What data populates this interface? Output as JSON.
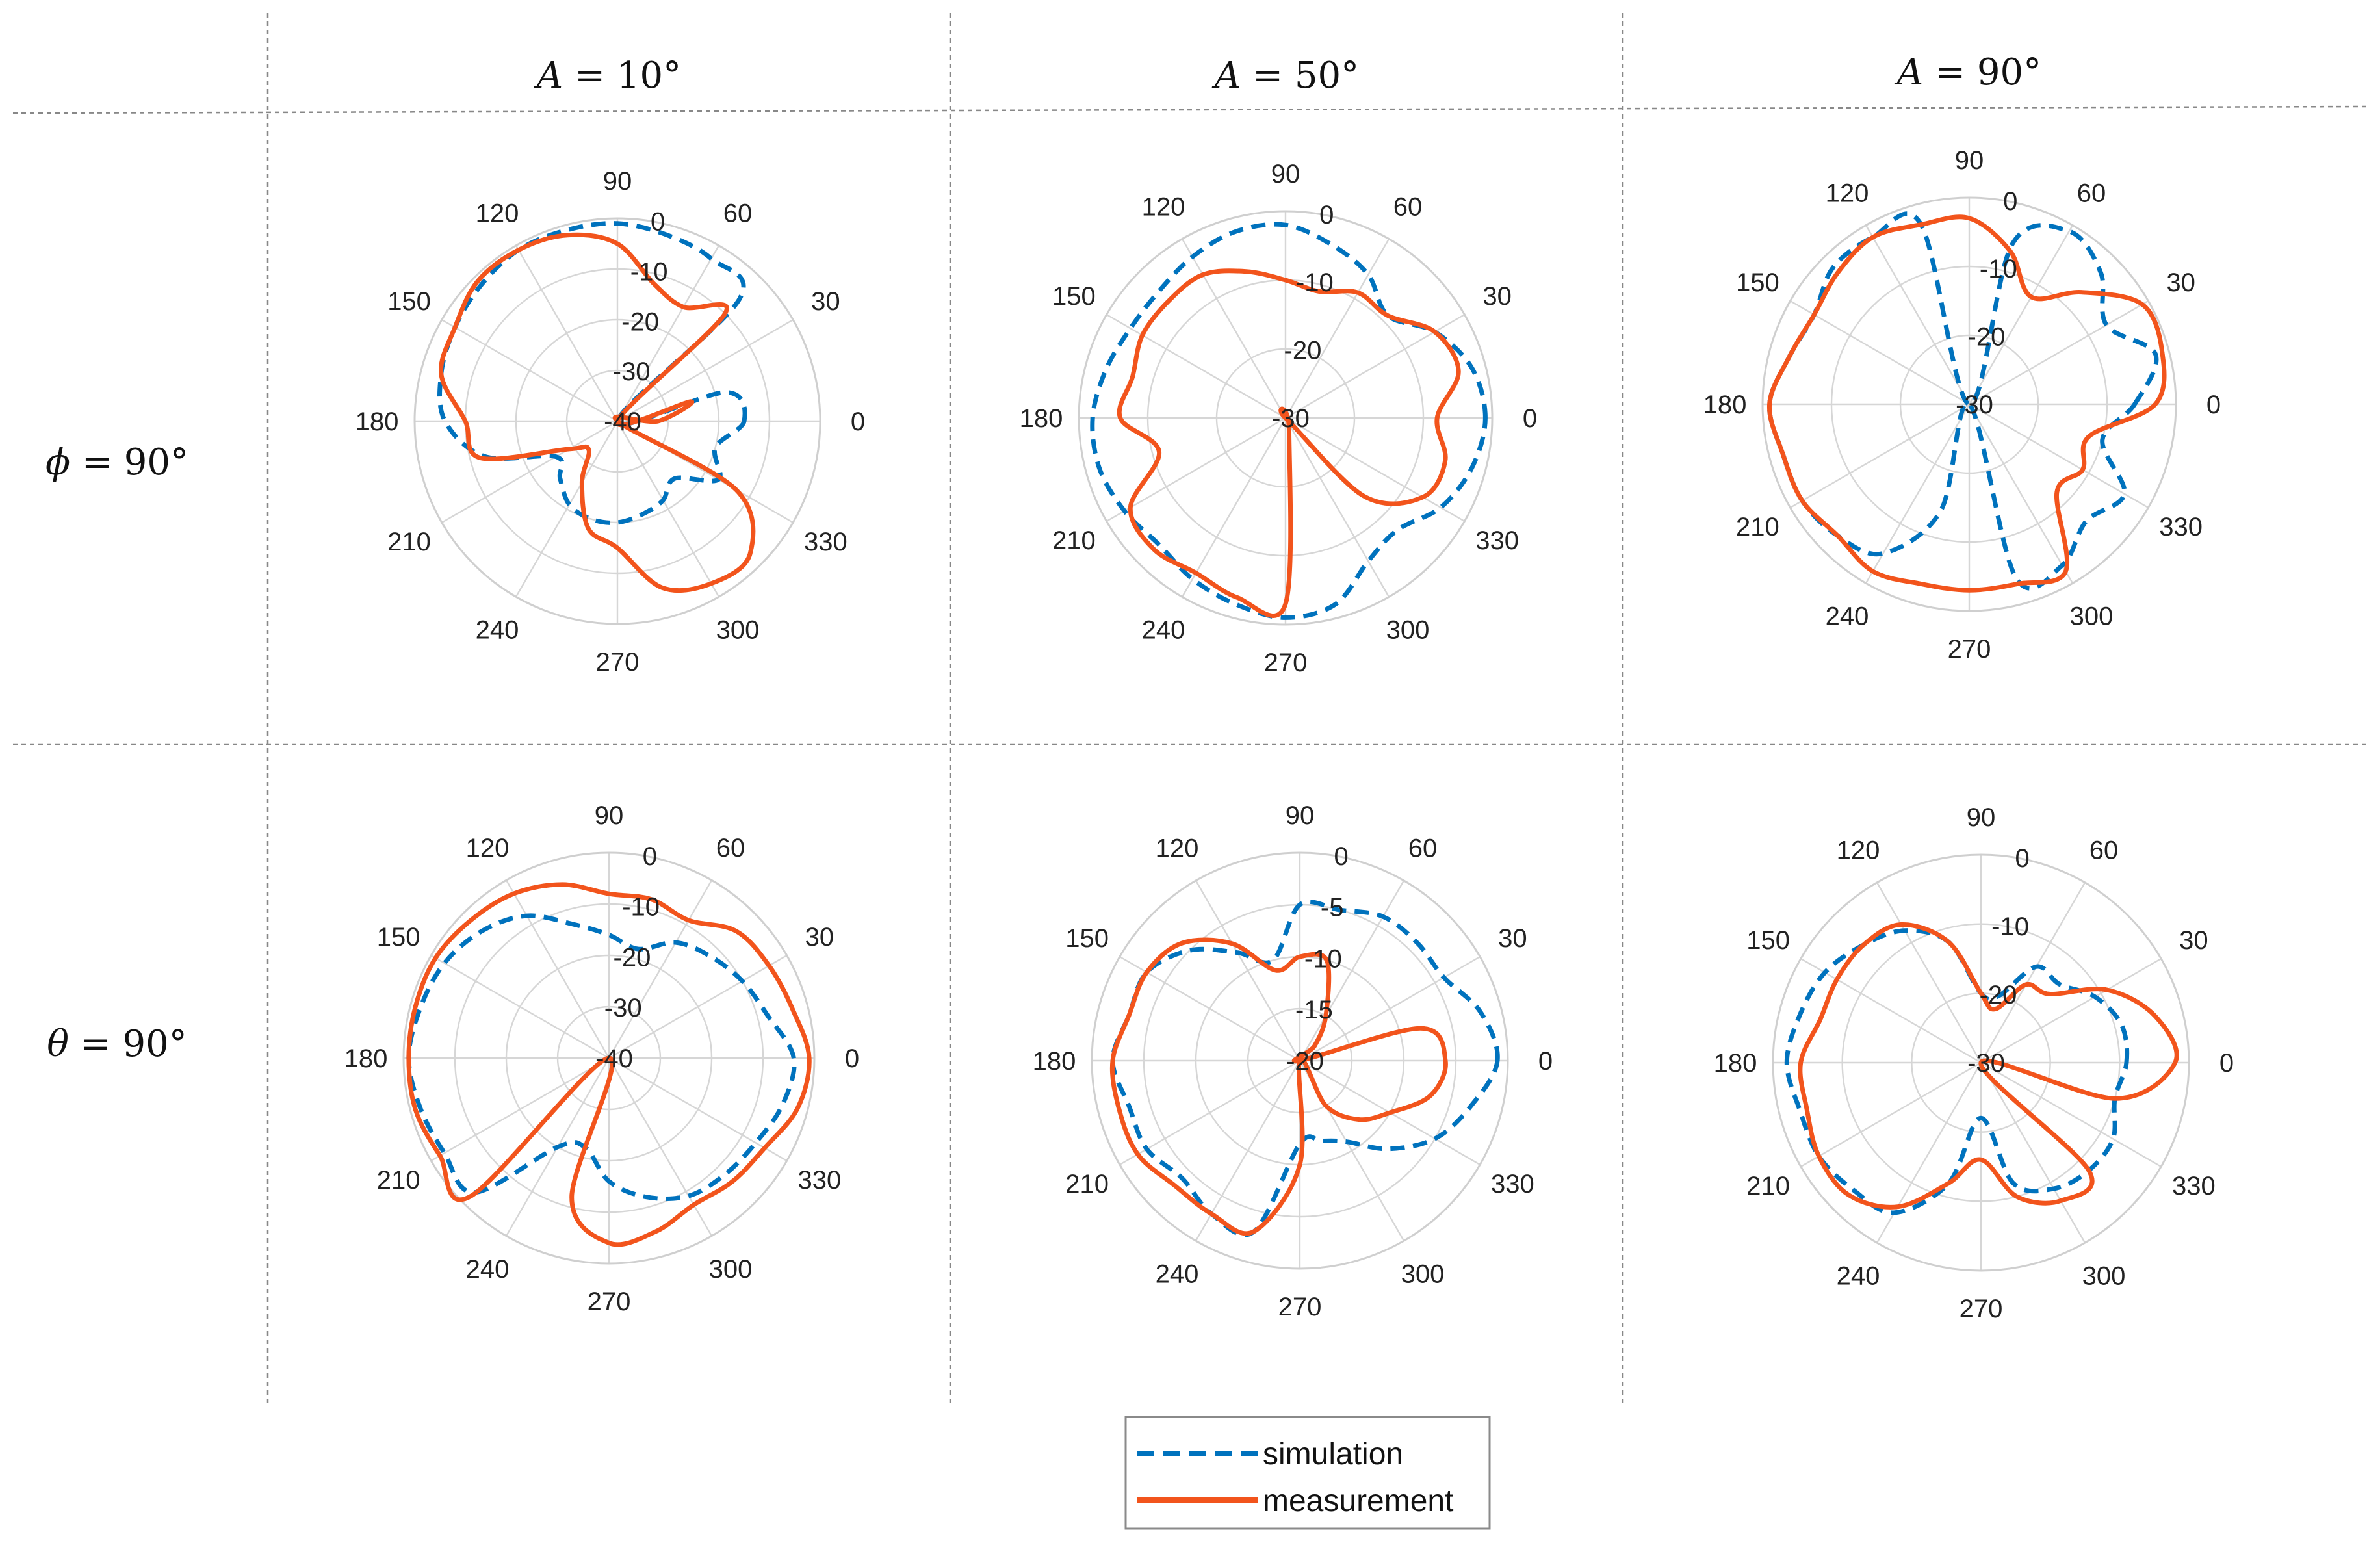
{
  "column_headers": [
    {
      "var": "A",
      "rest": " = 10°"
    },
    {
      "var": "A",
      "rest": " = 50°"
    },
    {
      "var": "A",
      "rest": " = 90°"
    }
  ],
  "row_headers": [
    {
      "var": "ϕ",
      "rest": " = 90°"
    },
    {
      "var": "θ",
      "rest": " = 90°"
    }
  ],
  "legend": {
    "simulation_label": "simulation",
    "measurement_label": "measurement"
  },
  "colors": {
    "simulation": "#0072BD",
    "measurement": "#F2541C",
    "grid": "#d6d6d6"
  },
  "angle_ticks": [
    "0",
    "30",
    "60",
    "90",
    "120",
    "150",
    "180",
    "210",
    "240",
    "270",
    "300",
    "330"
  ],
  "chart_data": [
    {
      "type": "polar-line",
      "id": "phi90_A10",
      "row": "ϕ = 90°",
      "column": "A = 10°",
      "r_min": -40,
      "r_max": 0,
      "r_ticks": [
        -40,
        -30,
        -20,
        -10,
        0
      ],
      "r_tick_labels": [
        "-40",
        "-30",
        "-20",
        "-10",
        "0"
      ],
      "theta_deg": [
        0,
        15,
        30,
        45,
        60,
        75,
        90,
        105,
        120,
        135,
        150,
        165,
        180,
        195,
        210,
        225,
        240,
        255,
        270,
        285,
        300,
        315,
        330,
        345
      ],
      "series": [
        {
          "name": "simulation",
          "values": [
            -15,
            -18,
            -40,
            -6,
            -3,
            -2,
            -1,
            -1,
            -1,
            -2,
            -3,
            -4,
            -6,
            -13,
            -26,
            -24,
            -21,
            -20,
            -20,
            -21,
            -22,
            -24,
            -17,
            -20
          ]
        },
        {
          "name": "measurement",
          "values": [
            -32,
            -25,
            -40,
            -10,
            -14,
            -12,
            -5,
            -2,
            -1,
            -1,
            -3,
            -4,
            -10,
            -12,
            -29,
            -32,
            -26,
            -18,
            -15,
            -6,
            -3,
            -3,
            -13,
            -40
          ]
        }
      ]
    },
    {
      "type": "polar-line",
      "id": "phi90_A50",
      "row": "ϕ = 90°",
      "column": "A = 50°",
      "r_min": -30,
      "r_max": 0,
      "r_ticks": [
        -30,
        -20,
        -10,
        0
      ],
      "r_tick_labels": [
        "-30",
        "-20",
        "-10",
        "0"
      ],
      "theta_deg": [
        0,
        15,
        30,
        45,
        60,
        75,
        90,
        105,
        120,
        135,
        150,
        165,
        180,
        195,
        210,
        225,
        240,
        255,
        270,
        285,
        300,
        315,
        330,
        345
      ],
      "series": [
        {
          "name": "simulation",
          "values": [
            -1,
            -2,
            -5,
            -9,
            -6,
            -4,
            -2,
            -2,
            -3,
            -4,
            -4,
            -3,
            -2,
            -2,
            -3,
            -4,
            -3,
            -2,
            -1,
            -2,
            -6,
            -7,
            -4,
            -2
          ]
        },
        {
          "name": "measurement",
          "values": [
            -8,
            -4,
            -5,
            -9,
            -9,
            -11,
            -10,
            -8,
            -6,
            -6,
            -6,
            -7,
            -6,
            -11,
            -4,
            -3,
            -4,
            -3,
            -3,
            -28,
            -30,
            -14,
            -7,
            -6
          ]
        }
      ]
    },
    {
      "type": "polar-line",
      "id": "phi90_A90",
      "row": "ϕ = 90°",
      "column": "A = 90°",
      "r_min": -30,
      "r_max": 0,
      "r_ticks": [
        -30,
        -20,
        -10,
        0
      ],
      "r_tick_labels": [
        "-30",
        "-20",
        "-10",
        "0"
      ],
      "theta_deg": [
        0,
        15,
        30,
        45,
        60,
        75,
        90,
        105,
        120,
        135,
        150,
        165,
        180,
        195,
        210,
        225,
        240,
        255,
        270,
        285,
        300,
        315,
        330,
        345
      ],
      "series": [
        {
          "name": "simulation",
          "values": [
            -6,
            -2,
            -7,
            -3,
            -1,
            -6,
            -30,
            -3,
            -2,
            -2,
            -4,
            -3,
            -1,
            -2,
            -2,
            -3,
            -5,
            -14,
            -30,
            -4,
            -3,
            -6,
            -4,
            -10
          ]
        },
        {
          "name": "measurement",
          "values": [
            -3,
            -1,
            -1,
            -7,
            -12,
            -7,
            -3,
            -3,
            -2,
            -3,
            -4,
            -3,
            -1,
            -2,
            -2,
            -3,
            -2,
            -3,
            -3,
            -3,
            -2,
            -12,
            -11,
            -12
          ]
        }
      ]
    },
    {
      "type": "polar-line",
      "id": "theta90_A10",
      "row": "θ = 90°",
      "column": "A = 10°",
      "r_min": -40,
      "r_max": 0,
      "r_ticks": [
        -40,
        -30,
        -20,
        -10,
        0
      ],
      "r_tick_labels": [
        "-40",
        "-30",
        "-20",
        "-10",
        "0"
      ],
      "theta_deg": [
        0,
        15,
        30,
        45,
        60,
        75,
        90,
        105,
        120,
        135,
        150,
        165,
        180,
        195,
        210,
        225,
        240,
        255,
        270,
        285,
        300,
        315,
        330,
        345
      ],
      "series": [
        {
          "name": "simulation",
          "values": [
            -4,
            -8,
            -10,
            -12,
            -14,
            -18,
            -16,
            -13,
            -8,
            -5,
            -3,
            -2,
            -1,
            -2,
            -3,
            -3,
            -20,
            -22,
            -16,
            -12,
            -9,
            -8,
            -7,
            -5
          ]
        },
        {
          "name": "measurement",
          "values": [
            -1,
            -3,
            -4,
            -5,
            -9,
            -8,
            -8,
            -5,
            -3,
            -2,
            -1,
            -1,
            -1,
            -1,
            -2,
            -2,
            -40,
            -12,
            -4,
            -5,
            -7,
            -6,
            -5,
            -2
          ]
        }
      ]
    },
    {
      "type": "polar-line",
      "id": "theta90_A50",
      "row": "θ = 90°",
      "column": "A = 50°",
      "r_min": -20,
      "r_max": 0,
      "r_ticks": [
        -20,
        -15,
        -10,
        -5,
        0
      ],
      "r_tick_labels": [
        "-20",
        "-15",
        "-10",
        "-5",
        "0"
      ],
      "theta_deg": [
        0,
        15,
        30,
        45,
        60,
        75,
        90,
        105,
        120,
        135,
        150,
        165,
        180,
        195,
        210,
        225,
        240,
        255,
        270,
        285,
        300,
        315,
        330,
        345
      ],
      "series": [
        {
          "name": "simulation",
          "values": [
            -1,
            -2,
            -4,
            -4,
            -4,
            -5,
            -5,
            -10,
            -8,
            -5,
            -3,
            -3,
            -2,
            -3,
            -3,
            -4,
            -3,
            -3,
            -12,
            -12,
            -11,
            -8,
            -5,
            -3
          ]
        },
        {
          "name": "measurement",
          "values": [
            -6,
            -8,
            -20,
            -18,
            -15,
            -10,
            -10,
            -11,
            -7,
            -4,
            -3,
            -3,
            -2,
            -2,
            -2,
            -3,
            -3,
            -3,
            -10,
            -20,
            -15,
            -12,
            -10,
            -7
          ]
        }
      ]
    },
    {
      "type": "polar-line",
      "id": "theta90_A90",
      "row": "θ = 90°",
      "column": "A = 90°",
      "r_min": -30,
      "r_max": 0,
      "r_ticks": [
        -30,
        -20,
        -10,
        0
      ],
      "r_tick_labels": [
        "-30",
        "-20",
        "-10",
        "0"
      ],
      "theta_deg": [
        0,
        15,
        30,
        45,
        60,
        75,
        90,
        105,
        120,
        135,
        150,
        165,
        180,
        195,
        210,
        225,
        240,
        255,
        270,
        285,
        300,
        315,
        330,
        345
      ],
      "series": [
        {
          "name": "simulation",
          "values": [
            -9,
            -9,
            -11,
            -14,
            -14,
            -20,
            -20,
            -12,
            -8,
            -6,
            -4,
            -3,
            -2,
            -3,
            -3,
            -4,
            -5,
            -12,
            -22,
            -12,
            -9,
            -8,
            -8,
            -10
          ]
        },
        {
          "name": "measurement",
          "values": [
            -2,
            -4,
            -9,
            -16,
            -17,
            -22,
            -20,
            -12,
            -7,
            -6,
            -6,
            -6,
            -4,
            -4,
            -3,
            -3,
            -6,
            -12,
            -16,
            -10,
            -7,
            -8,
            -30,
            -10
          ]
        }
      ]
    }
  ]
}
